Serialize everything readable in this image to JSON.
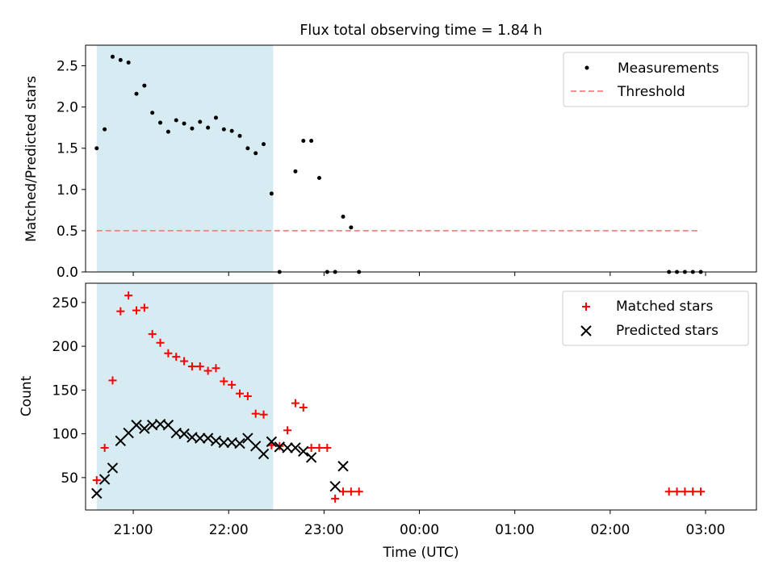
{
  "title": "Flux total observing time = 1.84 h",
  "colors": {
    "shade": "#add8e6",
    "threshold": "#ff7f7f",
    "measurements": "#000000",
    "matched": "#ff0000",
    "predicted": "#000000"
  },
  "chart_data": [
    {
      "type": "scatter",
      "ylabel": "Matched/Predicted stars",
      "ylim": [
        0,
        2.75
      ],
      "yticks": [
        0.0,
        0.5,
        1.0,
        1.5,
        2.0,
        2.5
      ],
      "ytick_labels": [
        "0.0",
        "0.5",
        "1.0",
        "1.5",
        "2.0",
        "2.5"
      ],
      "xlim": [
        "20:30",
        "03:32"
      ],
      "shaded_span": [
        "20:37",
        "22:28"
      ],
      "legend": "top-right",
      "series": [
        {
          "name": "Measurements",
          "marker": "dot",
          "x": [
            "20:37",
            "20:42",
            "20:47",
            "20:52",
            "20:57",
            "21:02",
            "21:07",
            "21:12",
            "21:17",
            "21:22",
            "21:27",
            "21:32",
            "21:37",
            "21:42",
            "21:47",
            "21:52",
            "21:57",
            "22:02",
            "22:07",
            "22:12",
            "22:17",
            "22:22",
            "22:27",
            "22:32",
            "22:42",
            "22:47",
            "22:52",
            "22:57",
            "23:02",
            "23:07",
            "23:12",
            "23:17",
            "23:22",
            "02:37",
            "02:42",
            "02:47",
            "02:52",
            "02:57"
          ],
          "y": [
            1.5,
            1.73,
            2.61,
            2.57,
            2.54,
            2.16,
            2.26,
            1.93,
            1.81,
            1.7,
            1.84,
            1.8,
            1.74,
            1.82,
            1.75,
            1.87,
            1.73,
            1.71,
            1.65,
            1.5,
            1.44,
            1.55,
            0.95,
            0.0,
            1.22,
            1.59,
            1.59,
            1.14,
            0.0,
            0.0,
            0.67,
            0.54,
            0.0,
            0.0,
            0.0,
            0.0,
            0.0,
            0.0
          ]
        },
        {
          "name": "Threshold",
          "style": "dashed",
          "x": [
            "20:37",
            "02:57"
          ],
          "y": [
            0.5,
            0.5
          ]
        }
      ]
    },
    {
      "type": "scatter",
      "xlabel": "Time (UTC)",
      "ylabel": "Count",
      "ylim": [
        13,
        272
      ],
      "yticks": [
        50,
        100,
        150,
        200,
        250
      ],
      "ytick_labels": [
        "50",
        "100",
        "150",
        "200",
        "250"
      ],
      "xlim": [
        "20:30",
        "03:32"
      ],
      "xticks": [
        "21:00",
        "22:00",
        "23:00",
        "00:00",
        "01:00",
        "02:00",
        "03:00"
      ],
      "xtick_labels": [
        "21:00",
        "22:00",
        "23:00",
        "00:00",
        "01:00",
        "02:00",
        "03:00"
      ],
      "shaded_span": [
        "20:37",
        "22:28"
      ],
      "legend": "top-right",
      "series": [
        {
          "name": "Matched stars",
          "marker": "plus",
          "x": [
            "20:37",
            "20:42",
            "20:47",
            "20:52",
            "20:57",
            "21:02",
            "21:07",
            "21:12",
            "21:17",
            "21:22",
            "21:27",
            "21:32",
            "21:37",
            "21:42",
            "21:47",
            "21:52",
            "21:57",
            "22:02",
            "22:07",
            "22:12",
            "22:17",
            "22:22",
            "22:27",
            "22:32",
            "22:37",
            "22:42",
            "22:47",
            "22:52",
            "22:57",
            "23:02",
            "23:07",
            "23:12",
            "23:17",
            "23:22",
            "02:37",
            "02:42",
            "02:47",
            "02:52",
            "02:57"
          ],
          "y": [
            47,
            84,
            161,
            240,
            258,
            241,
            244,
            214,
            204,
            192,
            188,
            183,
            177,
            177,
            172,
            175,
            160,
            156,
            146,
            143,
            123,
            122,
            87,
            86,
            104,
            135,
            130,
            84,
            84,
            84,
            26,
            34,
            34,
            34,
            34,
            34,
            34,
            34,
            34
          ]
        },
        {
          "name": "Predicted stars",
          "marker": "x",
          "x": [
            "20:37",
            "20:42",
            "20:47",
            "20:52",
            "20:57",
            "21:02",
            "21:07",
            "21:12",
            "21:17",
            "21:22",
            "21:27",
            "21:32",
            "21:37",
            "21:42",
            "21:47",
            "21:52",
            "21:57",
            "22:02",
            "22:07",
            "22:12",
            "22:17",
            "22:22",
            "22:27",
            "22:32",
            "22:37",
            "22:42",
            "22:47",
            "22:52",
            "23:07",
            "23:12"
          ],
          "y": [
            32,
            48,
            61,
            92,
            101,
            110,
            106,
            110,
            111,
            110,
            101,
            100,
            96,
            95,
            95,
            92,
            90,
            90,
            89,
            95,
            86,
            77,
            91,
            85,
            84,
            84,
            80,
            73,
            40,
            63
          ]
        }
      ]
    }
  ]
}
